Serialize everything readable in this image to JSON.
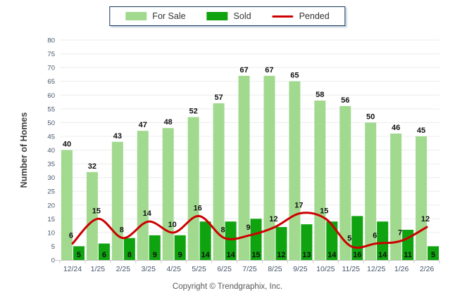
{
  "page": {
    "background": "#ffffff"
  },
  "legend": {
    "position": "top-center"
  },
  "footer": {
    "copyright": "Copyright © Trendgraphix, Inc."
  },
  "chart_data": {
    "type": "bar",
    "title": "",
    "xlabel": "",
    "ylabel": "Number of Homes",
    "ylim": [
      0,
      80
    ],
    "ytick_step": 5,
    "grid": true,
    "legend_position": "top-center",
    "categories": [
      "12/24",
      "1/25",
      "2/25",
      "3/25",
      "4/25",
      "5/25",
      "6/25",
      "7/25",
      "8/25",
      "9/25",
      "10/25",
      "11/25",
      "12/25",
      "1/26",
      "2/26"
    ],
    "series": [
      {
        "name": "For Sale",
        "type": "bar",
        "color": "#A1DA8E",
        "values": [
          40,
          32,
          43,
          47,
          48,
          52,
          57,
          67,
          67,
          65,
          58,
          56,
          50,
          46,
          45
        ]
      },
      {
        "name": "Sold",
        "type": "bar",
        "color": "#10A310",
        "values": [
          5,
          6,
          8,
          9,
          9,
          14,
          14,
          15,
          12,
          13,
          14,
          16,
          14,
          11,
          5
        ]
      },
      {
        "name": "Pended",
        "type": "line",
        "color": "#CC0000",
        "values": [
          6,
          15,
          8,
          14,
          10,
          16,
          8,
          9,
          12,
          17,
          15,
          5,
          6,
          7,
          12
        ]
      }
    ],
    "colors": {
      "gridline": "#ECECEC",
      "axis_line": "#C8C8C8",
      "tick_label": "#44546A",
      "data_label": "#111111",
      "axis_title": "#404040"
    }
  }
}
